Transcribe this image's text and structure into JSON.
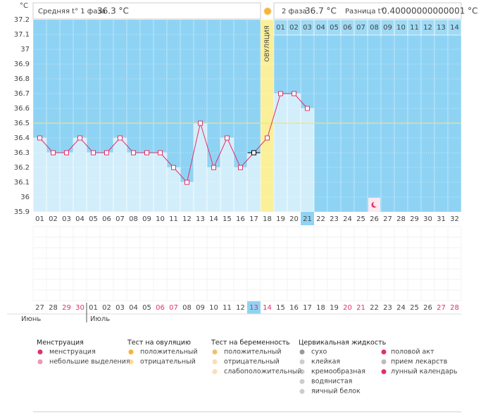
{
  "y_unit": "°C",
  "header": {
    "phase1_label": "Средняя t° 1 фаза",
    "phase1_value": "36.3 °C",
    "phase2_label": "2 фаза",
    "phase2_value": "36.7 °C",
    "diff_label": "Разница t°",
    "diff_value": "0.40000000000001 °C"
  },
  "ovulation_label": "ОВУЛЯЦИЯ",
  "chart_data": {
    "type": "line",
    "color": "#e0306a",
    "categories": [
      "01",
      "02",
      "03",
      "04",
      "05",
      "06",
      "07",
      "08",
      "09",
      "10",
      "11",
      "12",
      "13",
      "14",
      "15",
      "16",
      "17",
      "18",
      "19",
      "20",
      "21",
      "22",
      "23",
      "24",
      "25",
      "26",
      "27",
      "28",
      "29",
      "30",
      "31",
      "32"
    ],
    "values": [
      36.4,
      36.3,
      36.3,
      36.4,
      36.3,
      36.3,
      36.4,
      36.3,
      36.3,
      36.3,
      36.2,
      36.1,
      36.5,
      36.2,
      36.4,
      36.2,
      36.3,
      36.4,
      36.7,
      36.7,
      36.6,
      null,
      null,
      null,
      null,
      null,
      null,
      null,
      null,
      null,
      null,
      null
    ],
    "ylim": [
      35.9,
      37.2
    ],
    "yticks": [
      35.9,
      36,
      36.1,
      36.2,
      36.3,
      36.4,
      36.5,
      36.6,
      36.7,
      36.8,
      36.9,
      37,
      37.1,
      37.2
    ],
    "cover_line": 36.5,
    "ovulation_index": 17,
    "highlight_index": 20,
    "selected_index": 16,
    "lunar_index": 25
  },
  "phase2_days": [
    "01",
    "02",
    "03",
    "04",
    "05",
    "06",
    "07",
    "08",
    "09",
    "10",
    "11",
    "12",
    "13",
    "14"
  ],
  "calendar": {
    "dates": [
      {
        "text": "27",
        "red": false
      },
      {
        "text": "28",
        "red": false
      },
      {
        "text": "29",
        "red": true
      },
      {
        "text": "30",
        "red": true
      },
      {
        "text": "01",
        "red": false
      },
      {
        "text": "02",
        "red": false
      },
      {
        "text": "03",
        "red": false
      },
      {
        "text": "04",
        "red": false
      },
      {
        "text": "05",
        "red": false
      },
      {
        "text": "06",
        "red": true
      },
      {
        "text": "07",
        "red": true
      },
      {
        "text": "08",
        "red": false
      },
      {
        "text": "09",
        "red": false
      },
      {
        "text": "10",
        "red": false
      },
      {
        "text": "11",
        "red": false
      },
      {
        "text": "12",
        "red": false
      },
      {
        "text": "13",
        "red": true
      },
      {
        "text": "14",
        "red": true
      },
      {
        "text": "15",
        "red": false
      },
      {
        "text": "16",
        "red": false
      },
      {
        "text": "17",
        "red": false
      },
      {
        "text": "18",
        "red": false
      },
      {
        "text": "19",
        "red": false
      },
      {
        "text": "20",
        "red": true
      },
      {
        "text": "21",
        "red": true
      },
      {
        "text": "22",
        "red": false
      },
      {
        "text": "23",
        "red": false
      },
      {
        "text": "24",
        "red": false
      },
      {
        "text": "25",
        "red": false
      },
      {
        "text": "26",
        "red": false
      },
      {
        "text": "27",
        "red": true
      },
      {
        "text": "28",
        "red": true
      }
    ],
    "highlight_index": 16,
    "month1": "Июнь",
    "month2": "Июль",
    "month2_start": 4
  },
  "legend": [
    {
      "title": "Менструация",
      "items": [
        "менструация",
        "небольшие выделения"
      ]
    },
    {
      "title": "Тест на овуляцию",
      "items": [
        "положительный",
        "отрицательный"
      ]
    },
    {
      "title": "Тест на беременность",
      "items": [
        "положительный",
        "отрицательный",
        "слабоположительный"
      ]
    },
    {
      "title": "Цервикальная жидкость",
      "items": [
        "сухо",
        "клейкая",
        "кремообразная",
        "водянистая",
        "яичный белок"
      ]
    }
  ],
  "legend_extra": [
    "половой акт",
    "прием лекарств",
    "лунный календарь"
  ]
}
